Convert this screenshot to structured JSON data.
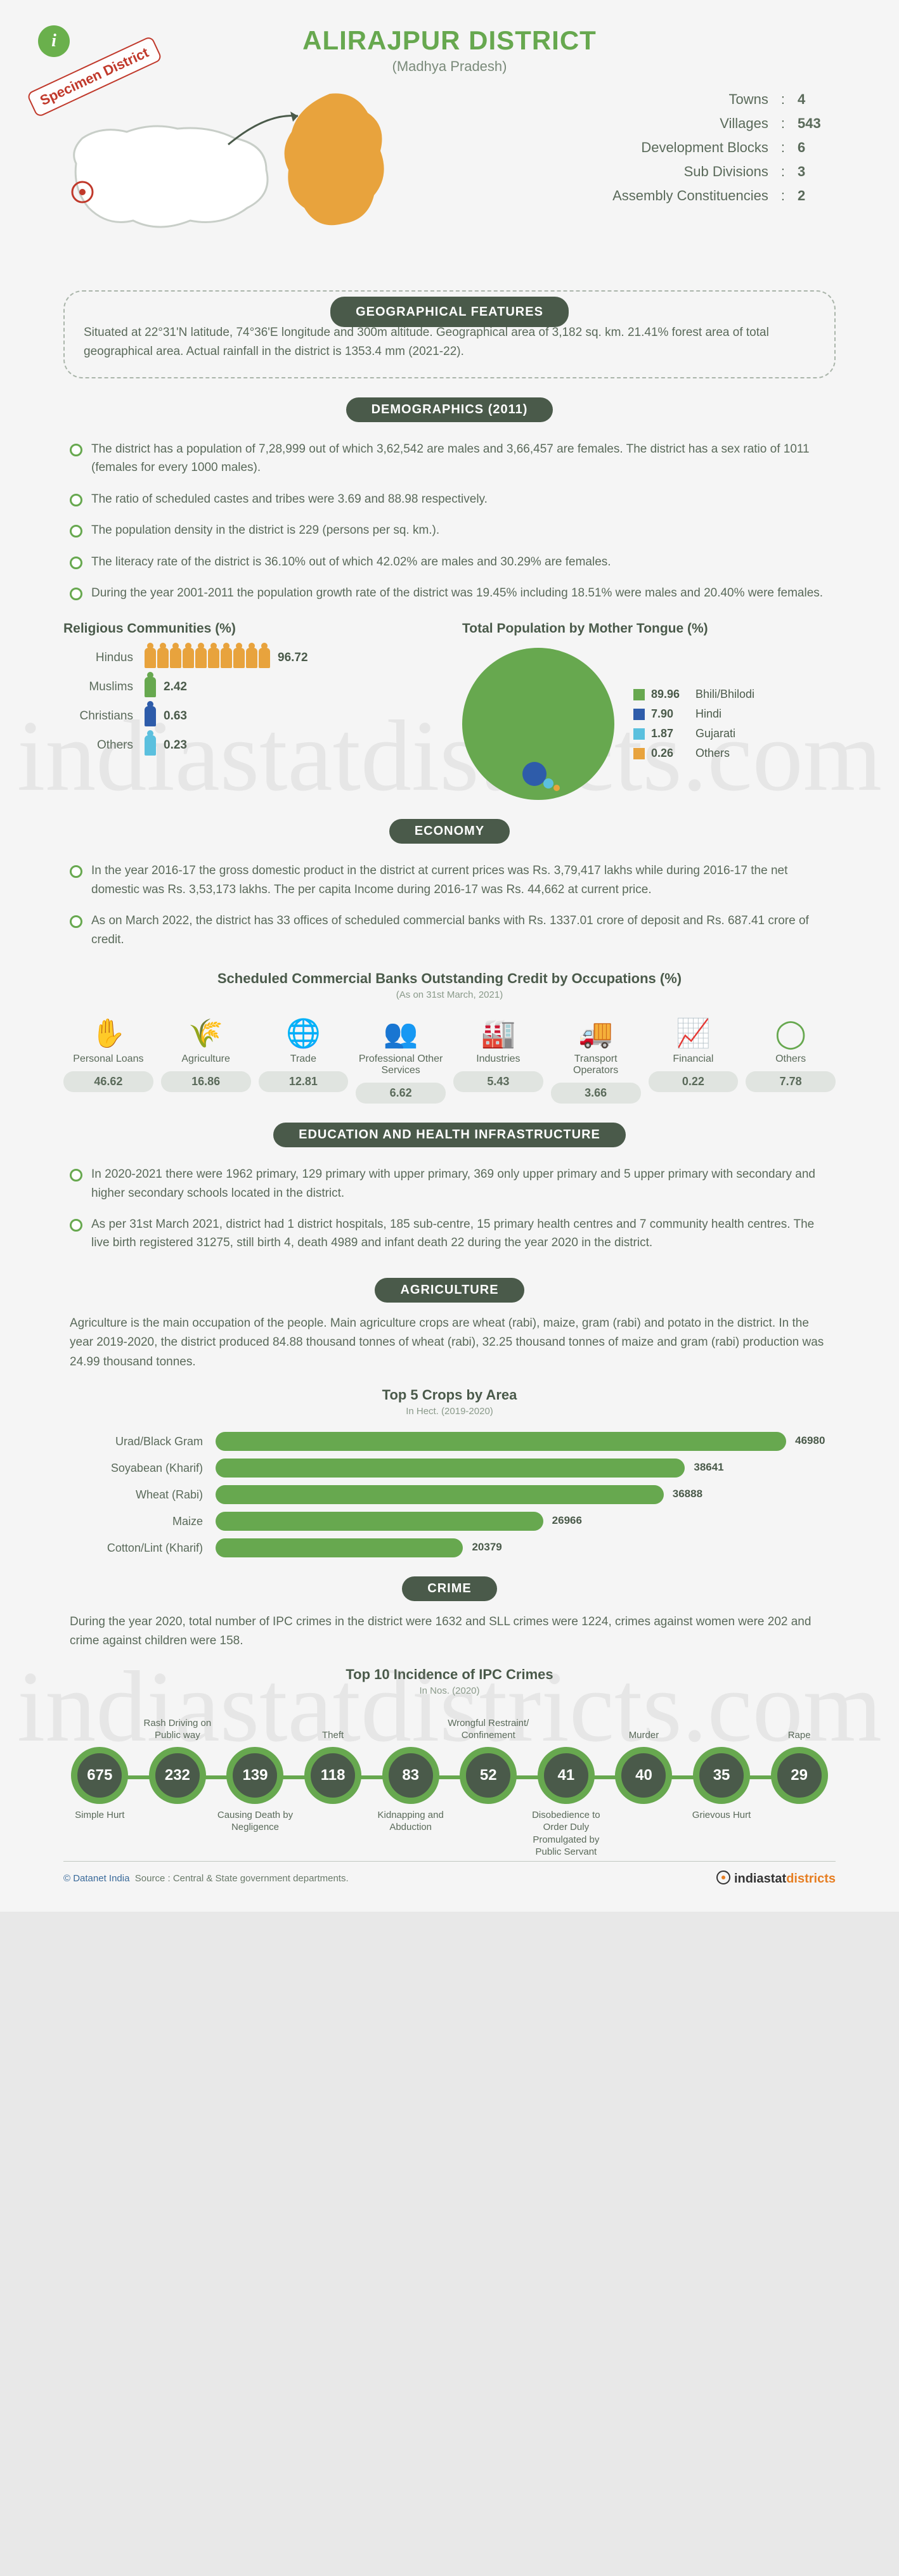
{
  "header": {
    "title": "ALIRAJPUR DISTRICT",
    "subtitle": "(Madhya Pradesh)",
    "specimen": "Specimen District"
  },
  "colors": {
    "accent": "#67a84f",
    "dark": "#4a5a4a",
    "orange": "#e8a33d",
    "blue": "#2e5caa",
    "cyan": "#5bc0de",
    "red": "#c0392b",
    "gray_pill": "#e0e4e0"
  },
  "overview": [
    {
      "label": "Towns",
      "value": "4"
    },
    {
      "label": "Villages",
      "value": "543"
    },
    {
      "label": "Development Blocks",
      "value": "6"
    },
    {
      "label": "Sub Divisions",
      "value": "3"
    },
    {
      "label": "Assembly Constituencies",
      "value": "2"
    }
  ],
  "sections": {
    "geo": "GEOGRAPHICAL FEATURES",
    "demo": "DEMOGRAPHICS (2011)",
    "econ": "ECONOMY",
    "edu": "EDUCATION AND HEALTH INFRASTRUCTURE",
    "agri": "AGRICULTURE",
    "crime": "CRIME"
  },
  "geo_text": "Situated at 22°31'N latitude, 74°36'E longitude and 300m altitude. Geographical area of 3,182 sq. km. 21.41% forest area of total geographical area. Actual rainfall in the district is 1353.4 mm (2021-22).",
  "demo_bullets": [
    "The district has a population of 7,28,999 out of which 3,62,542 are males and 3,66,457 are females. The district has a sex ratio of 1011 (females for every 1000 males).",
    "The ratio of scheduled castes and tribes were 3.69 and 88.98 respectively.",
    "The population density in the district is 229 (persons per sq. km.).",
    "The literacy rate of the district is 36.10% out of which 42.02% are males and 30.29% are females.",
    "During the year 2001-2011 the population growth rate of the district was 19.45% including 18.51% were males and 20.40% were females."
  ],
  "religion": {
    "title": "Religious Communities (%)",
    "items": [
      {
        "label": "Hindus",
        "value": "96.72",
        "color": "#e8a33d",
        "count": 10
      },
      {
        "label": "Muslims",
        "value": "2.42",
        "color": "#67a84f",
        "count": 1
      },
      {
        "label": "Christians",
        "value": "0.63",
        "color": "#2e5caa",
        "count": 1
      },
      {
        "label": "Others",
        "value": "0.23",
        "color": "#5bc0de",
        "count": 1
      }
    ]
  },
  "mother_tongue": {
    "title": "Total Population by Mother Tongue (%)",
    "items": [
      {
        "label": "Bhili/Bhilodi",
        "value": "89.96",
        "color": "#67a84f"
      },
      {
        "label": "Hindi",
        "value": "7.90",
        "color": "#2e5caa"
      },
      {
        "label": "Gujarati",
        "value": "1.87",
        "color": "#5bc0de"
      },
      {
        "label": "Others",
        "value": "0.26",
        "color": "#e8a33d"
      }
    ]
  },
  "econ_bullets": [
    "In the year 2016-17 the gross domestic product in the district at current prices was Rs. 3,79,417 lakhs while during 2016-17 the net domestic was Rs. 3,53,173 lakhs. The per capita Income during 2016-17 was Rs. 44,662 at current price.",
    "As on March 2022, the district has 33 offices of scheduled commercial banks with Rs. 1337.01 crore of deposit and Rs. 687.41 crore of credit."
  ],
  "credit": {
    "title": "Scheduled Commercial Banks Outstanding Credit by Occupations (%)",
    "note": "(As on 31st March, 2021)",
    "items": [
      {
        "label": "Personal Loans",
        "value": "46.62",
        "glyph": "✋"
      },
      {
        "label": "Agriculture",
        "value": "16.86",
        "glyph": "🌾"
      },
      {
        "label": "Trade",
        "value": "12.81",
        "glyph": "🌐"
      },
      {
        "label": "Professional Other Services",
        "value": "6.62",
        "glyph": "👥"
      },
      {
        "label": "Industries",
        "value": "5.43",
        "glyph": "🏭"
      },
      {
        "label": "Transport Operators",
        "value": "3.66",
        "glyph": "🚚"
      },
      {
        "label": "Financial",
        "value": "0.22",
        "glyph": "📈"
      },
      {
        "label": "Others",
        "value": "7.78",
        "glyph": "◯"
      }
    ]
  },
  "edu_bullets": [
    "In 2020-2021 there were 1962 primary, 129 primary with upper primary, 369 only upper primary and 5 upper primary with secondary and higher secondary schools located in the district.",
    "As per 31st March 2021, district had 1 district hospitals, 185 sub-centre, 15 primary health centres and 7 community health centres. The live birth registered 31275, still birth 4, death 4989 and infant death 22 during the year 2020 in the district."
  ],
  "agri_text": "Agriculture is the main occupation of the people. Main agriculture crops are wheat (rabi), maize, gram (rabi) and potato in the district. In the year 2019-2020, the district produced 84.88 thousand tonnes of wheat (rabi), 32.25 thousand tonnes of maize and gram (rabi) production was 24.99 thousand tonnes.",
  "crops": {
    "title": "Top 5 Crops by Area",
    "note": "In Hect. (2019-2020)",
    "max": 50000,
    "items": [
      {
        "label": "Urad/Black Gram",
        "value": 46980
      },
      {
        "label": "Soyabean (Kharif)",
        "value": 38641
      },
      {
        "label": "Wheat (Rabi)",
        "value": 36888
      },
      {
        "label": "Maize",
        "value": 26966
      },
      {
        "label": "Cotton/Lint (Kharif)",
        "value": 20379
      }
    ]
  },
  "crime_text": "During the year 2020, total number of IPC crimes in the district were 1632 and SLL crimes were 1224, crimes against women were 202 and crime against children were 158.",
  "crimes": {
    "title": "Top 10 Incidence of IPC Crimes",
    "note": "In Nos. (2020)",
    "items": [
      {
        "label": "Simple Hurt",
        "value": "675",
        "pos": "bottom"
      },
      {
        "label": "Rash Driving on Public way",
        "value": "232",
        "pos": "top"
      },
      {
        "label": "Causing Death by Negligence",
        "value": "139",
        "pos": "bottom"
      },
      {
        "label": "Theft",
        "value": "118",
        "pos": "top"
      },
      {
        "label": "Kidnapping and Abduction",
        "value": "83",
        "pos": "bottom"
      },
      {
        "label": "Wrongful Restraint/ Confinement",
        "value": "52",
        "pos": "top"
      },
      {
        "label": "Disobedience to Order Duly Promulgated by Public Servant",
        "value": "41",
        "pos": "bottom"
      },
      {
        "label": "Murder",
        "value": "40",
        "pos": "top"
      },
      {
        "label": "Grievous Hurt",
        "value": "35",
        "pos": "bottom"
      },
      {
        "label": "Rape",
        "value": "29",
        "pos": "top"
      }
    ]
  },
  "footer": {
    "copyright": "© Datanet India",
    "source": "Source : Central & State government departments.",
    "logo_a": "indiastat",
    "logo_b": "districts"
  },
  "watermark": "indiastatdistricts.com"
}
